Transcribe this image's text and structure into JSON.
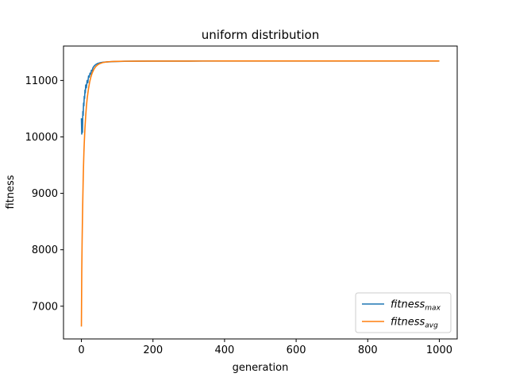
{
  "chart_data": {
    "type": "line",
    "title": "uniform distribution",
    "xlabel": "generation",
    "ylabel": "fitness",
    "xlim": [
      -50,
      1050
    ],
    "ylim": [
      6420,
      11610
    ],
    "xticks": [
      0,
      200,
      400,
      600,
      800,
      1000
    ],
    "yticks": [
      7000,
      8000,
      9000,
      10000,
      11000
    ],
    "grid": false,
    "legend_position": "lower-right",
    "series": [
      {
        "name_base": "fitness",
        "name_sub": "max",
        "color": "#1f77b4",
        "x": [
          0,
          1,
          2,
          3,
          4,
          5,
          6,
          7,
          8,
          9,
          10,
          11,
          12,
          14,
          16,
          18,
          20,
          22,
          24,
          26,
          28,
          30,
          32,
          35,
          38,
          41,
          45,
          50,
          55,
          60,
          70,
          80,
          90,
          100,
          120,
          150,
          200,
          300,
          400,
          500,
          600,
          700,
          800,
          900,
          1000
        ],
        "y": [
          10330,
          10050,
          10300,
          10080,
          10450,
          10380,
          10600,
          10550,
          10720,
          10680,
          10830,
          10780,
          10920,
          10870,
          11000,
          10960,
          11080,
          11060,
          11130,
          11110,
          11180,
          11170,
          11220,
          11250,
          11270,
          11285,
          11300,
          11310,
          11318,
          11322,
          11328,
          11332,
          11335,
          11337,
          11340,
          11342,
          11343,
          11344,
          11345,
          11345,
          11345,
          11345,
          11345,
          11345,
          11345
        ]
      },
      {
        "name_base": "fitness",
        "name_sub": "avg",
        "color": "#ff7f0e",
        "x": [
          0,
          1,
          2,
          3,
          4,
          5,
          6,
          7,
          8,
          9,
          10,
          12,
          14,
          16,
          18,
          20,
          23,
          26,
          30,
          35,
          40,
          45,
          50,
          60,
          70,
          80,
          90,
          100,
          120,
          150,
          200,
          300,
          400,
          500,
          600,
          700,
          800,
          900,
          1000
        ],
        "y": [
          6640,
          7600,
          8150,
          8560,
          8920,
          9240,
          9500,
          9720,
          9890,
          10030,
          10160,
          10370,
          10540,
          10670,
          10770,
          10860,
          10970,
          11050,
          11130,
          11200,
          11245,
          11275,
          11295,
          11318,
          11328,
          11334,
          11337,
          11339,
          11341,
          11342,
          11343,
          11344,
          11345,
          11345,
          11345,
          11345,
          11345,
          11345,
          11345
        ]
      }
    ]
  }
}
